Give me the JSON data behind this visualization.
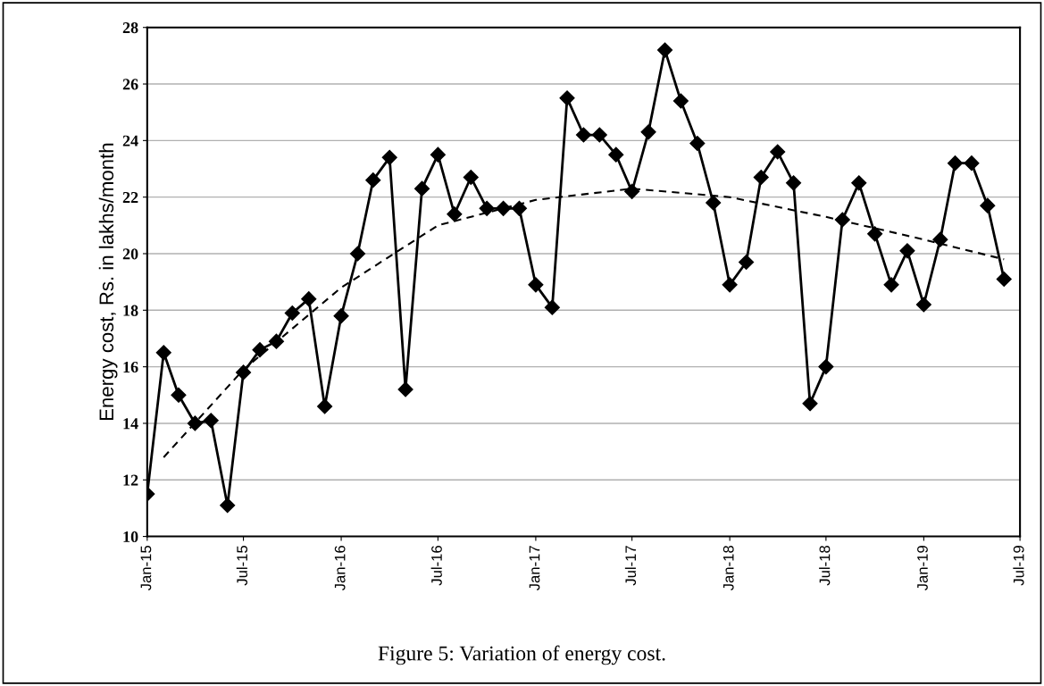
{
  "chart_data": {
    "type": "line",
    "ylabel": "Energy cost, Rs. in lakhs/month",
    "annotations": [
      "Figure 5: Variation of energy cost."
    ],
    "ylim": [
      10,
      28
    ],
    "yticks": [
      10,
      12,
      14,
      16,
      18,
      20,
      22,
      24,
      26,
      28
    ],
    "xlim": [
      "2015-01-01",
      "2019-07-01"
    ],
    "xticks": [
      {
        "value": "2015-01-01",
        "label": "Jan-15"
      },
      {
        "value": "2015-07-01",
        "label": "Jul-15"
      },
      {
        "value": "2016-01-01",
        "label": "Jan-16"
      },
      {
        "value": "2016-07-01",
        "label": "Jul-16"
      },
      {
        "value": "2017-01-01",
        "label": "Jan-17"
      },
      {
        "value": "2017-07-01",
        "label": "Jul-17"
      },
      {
        "value": "2018-01-01",
        "label": "Jan-18"
      },
      {
        "value": "2018-07-01",
        "label": "Jul-18"
      },
      {
        "value": "2019-01-01",
        "label": "Jan-19"
      },
      {
        "value": "2019-07-01",
        "label": "Jul-19"
      }
    ],
    "grid": "y",
    "legend": false,
    "series": [
      {
        "color": "#000000",
        "marker": "diamond",
        "line_style": "solid",
        "x": [
          "2015-01-01",
          "2015-02-01",
          "2015-03-01",
          "2015-04-01",
          "2015-05-01",
          "2015-06-01",
          "2015-07-01",
          "2015-08-01",
          "2015-09-01",
          "2015-10-01",
          "2015-11-01",
          "2015-12-01",
          "2016-01-01",
          "2016-02-01",
          "2016-03-01",
          "2016-04-01",
          "2016-05-01",
          "2016-06-01",
          "2016-07-01",
          "2016-08-01",
          "2016-09-01",
          "2016-10-01",
          "2016-11-01",
          "2016-12-01",
          "2017-01-01",
          "2017-02-01",
          "2017-03-01",
          "2017-04-01",
          "2017-05-01",
          "2017-06-01",
          "2017-07-01",
          "2017-08-01",
          "2017-09-01",
          "2017-10-01",
          "2017-11-01",
          "2017-12-01",
          "2018-01-01",
          "2018-02-01",
          "2018-03-01",
          "2018-04-01",
          "2018-05-01",
          "2018-06-01",
          "2018-07-01",
          "2018-08-01",
          "2018-09-01",
          "2018-10-01",
          "2018-11-01",
          "2018-12-01",
          "2019-01-01",
          "2019-02-01",
          "2019-03-01",
          "2019-04-01",
          "2019-05-01",
          "2019-06-01"
        ],
        "values": [
          11.5,
          16.5,
          15.0,
          14.0,
          14.1,
          11.1,
          15.8,
          16.6,
          16.9,
          17.9,
          18.4,
          14.6,
          17.8,
          20.0,
          22.6,
          23.4,
          15.2,
          22.3,
          23.5,
          21.4,
          22.7,
          21.6,
          21.6,
          21.6,
          18.9,
          18.1,
          25.5,
          24.2,
          24.2,
          23.5,
          22.2,
          24.3,
          27.2,
          25.4,
          23.9,
          21.8,
          18.9,
          19.7,
          22.7,
          23.6,
          22.5,
          14.7,
          16.0,
          21.2,
          22.5,
          20.7,
          18.9,
          20.1,
          18.2,
          20.5,
          23.2,
          23.2,
          21.7,
          19.1
        ]
      },
      {
        "color": "#000000",
        "marker": "none",
        "line_style": "dashed",
        "x": [
          "2015-02-01",
          "2015-07-01",
          "2016-01-01",
          "2016-07-01",
          "2017-01-01",
          "2017-07-01",
          "2018-01-01",
          "2018-07-01",
          "2019-01-01",
          "2019-06-01"
        ],
        "values": [
          12.8,
          15.9,
          18.8,
          21.0,
          21.9,
          22.3,
          22.0,
          21.3,
          20.5,
          19.8
        ]
      }
    ]
  }
}
